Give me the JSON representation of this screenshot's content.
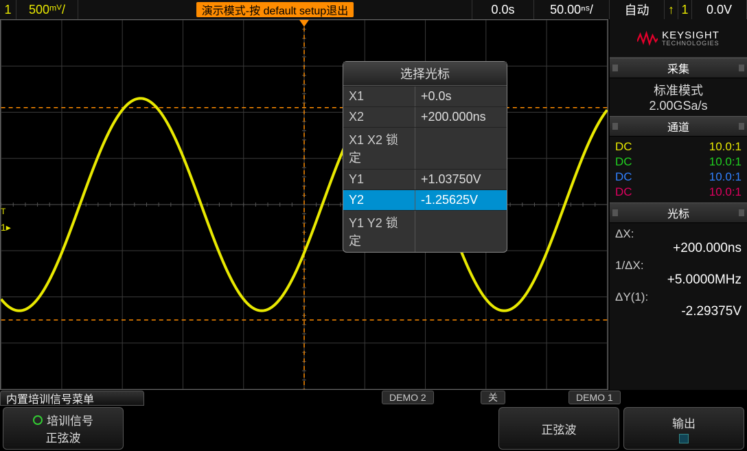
{
  "topbar": {
    "channel_num": "1",
    "vdiv": "500ᵐⱽ/",
    "demo_banner": "演示模式-按 default setup退出",
    "delay": "0.0s",
    "tdiv": "50.00ⁿˢ/",
    "trigger_mode": "自动",
    "trigger_edge_glyph": "↑",
    "trigger_source": "1",
    "trigger_level": "0.0V"
  },
  "waveform": {
    "grid_cols": 10,
    "grid_rows": 8,
    "bg_color": "#000000",
    "grid_color": "#3a3a3a",
    "center_axis_color": "#555555",
    "trace_color": "#e8e800",
    "trace_width": 4,
    "amplitude_divs": 2.3,
    "period_divs": 4.0,
    "phase_start_divs": -3.7,
    "cursor_color": "#ff8c00",
    "y1_div": 2.1,
    "y2_div": -2.5
  },
  "cursor_popup": {
    "title": "选择光标",
    "rows": [
      {
        "k": "X1",
        "v": "+0.0s",
        "sel": false
      },
      {
        "k": "X2",
        "v": "+200.000ns",
        "sel": false
      },
      {
        "k": "X1 X2 锁定",
        "v": "",
        "sel": false
      },
      {
        "k": "Y1",
        "v": "+1.03750V",
        "sel": false
      },
      {
        "k": "Y2",
        "v": "-1.25625V",
        "sel": true
      },
      {
        "k": "Y1 Y2 锁定",
        "v": "",
        "sel": false
      }
    ]
  },
  "logo": {
    "brand": "KEYSIGHT",
    "sub": "TECHNOLOGIES",
    "wave_color": "#e4002b"
  },
  "acq_section": {
    "title": "采集",
    "mode": "标准模式",
    "rate": "2.00GSa/s"
  },
  "chan_section": {
    "title": "通道",
    "channels": [
      {
        "coupling": "DC",
        "ratio": "10.0:1",
        "color": "#e8e800"
      },
      {
        "coupling": "DC",
        "ratio": "10.0:1",
        "color": "#20d020"
      },
      {
        "coupling": "DC",
        "ratio": "10.0:1",
        "color": "#3080ff"
      },
      {
        "coupling": "DC",
        "ratio": "10.0:1",
        "color": "#e00060"
      }
    ]
  },
  "cursor_section": {
    "title": "光标",
    "items": [
      {
        "lbl": "ΔX:",
        "val": "+200.000ns"
      },
      {
        "lbl": "1/ΔX:",
        "val": "+5.0000MHz"
      },
      {
        "lbl": "ΔY(1):",
        "val": "-2.29375V"
      }
    ]
  },
  "bottom": {
    "menu_title": "内置培训信号菜单",
    "labels": {
      "demo2": "DEMO 2",
      "off": "关",
      "demo1": "DEMO 1"
    },
    "sk1_line1": "培训信号",
    "sk1_line2": "正弦波",
    "sk_right1": "正弦波",
    "sk_right2": "输出"
  }
}
